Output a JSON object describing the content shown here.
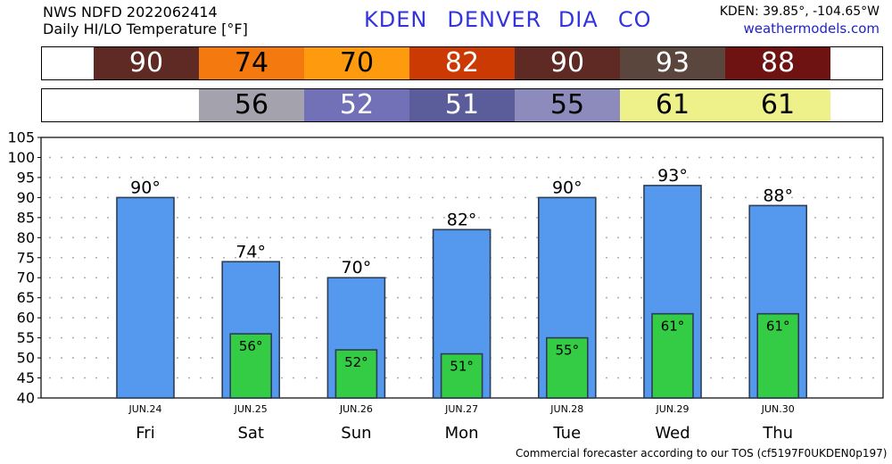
{
  "header": {
    "line1": "NWS NDFD 2022062414",
    "line2": "Daily HI/LO Temperature [°F]",
    "station_code": "KDEN",
    "station_name": "DENVER DIA",
    "state": "CO",
    "coords": "KDEN: 39.85°, -104.65°W",
    "site": "weathermodels.com"
  },
  "footer": "Commercial forecaster according to our TOS (cf5197F0UKDEN0p197)",
  "hi_strip": [
    {
      "value": "90",
      "bg": "#5f2a24",
      "fg": "#ffffff"
    },
    {
      "value": "74",
      "bg": "#f47a10",
      "fg": "#000000"
    },
    {
      "value": "70",
      "bg": "#fd9a0e",
      "fg": "#000000"
    },
    {
      "value": "82",
      "bg": "#cc3a04",
      "fg": "#ffffff"
    },
    {
      "value": "90",
      "bg": "#5f2a24",
      "fg": "#ffffff"
    },
    {
      "value": "93",
      "bg": "#5a463d",
      "fg": "#ffffff"
    },
    {
      "value": "88",
      "bg": "#6e1212",
      "fg": "#ffffff"
    }
  ],
  "lo_strip": [
    {
      "value": "",
      "bg": "#ffffff",
      "fg": "#000000"
    },
    {
      "value": "56",
      "bg": "#a3a2ad",
      "fg": "#000000"
    },
    {
      "value": "52",
      "bg": "#7270b6",
      "fg": "#ffffff"
    },
    {
      "value": "51",
      "bg": "#5b5c9a",
      "fg": "#ffffff"
    },
    {
      "value": "55",
      "bg": "#8c8bbb",
      "fg": "#000000"
    },
    {
      "value": "61",
      "bg": "#eef08a",
      "fg": "#000000"
    },
    {
      "value": "61",
      "bg": "#eef08a",
      "fg": "#000000"
    }
  ],
  "chart_data": {
    "type": "bar",
    "dates": [
      "JUN.24",
      "JUN.25",
      "JUN.26",
      "JUN.27",
      "JUN.28",
      "JUN.29",
      "JUN.30"
    ],
    "categories": [
      "Fri",
      "Sat",
      "Sun",
      "Mon",
      "Tue",
      "Wed",
      "Thu"
    ],
    "series": [
      {
        "values": [
          90,
          74,
          70,
          82,
          90,
          93,
          88
        ],
        "color": "#5599ee"
      },
      {
        "values": [
          null,
          56,
          52,
          51,
          55,
          61,
          61
        ],
        "color": "#33cc44"
      }
    ],
    "hi_labels": [
      "90°",
      "74°",
      "70°",
      "82°",
      "90°",
      "93°",
      "88°"
    ],
    "lo_labels": [
      "",
      "56°",
      "52°",
      "51°",
      "55°",
      "61°",
      "61°"
    ],
    "ylim": [
      40,
      105
    ],
    "yticks": [
      "40",
      "45",
      "50",
      "55",
      "60",
      "65",
      "70",
      "75",
      "80",
      "85",
      "90",
      "95",
      "100",
      "105"
    ],
    "grid": true
  }
}
